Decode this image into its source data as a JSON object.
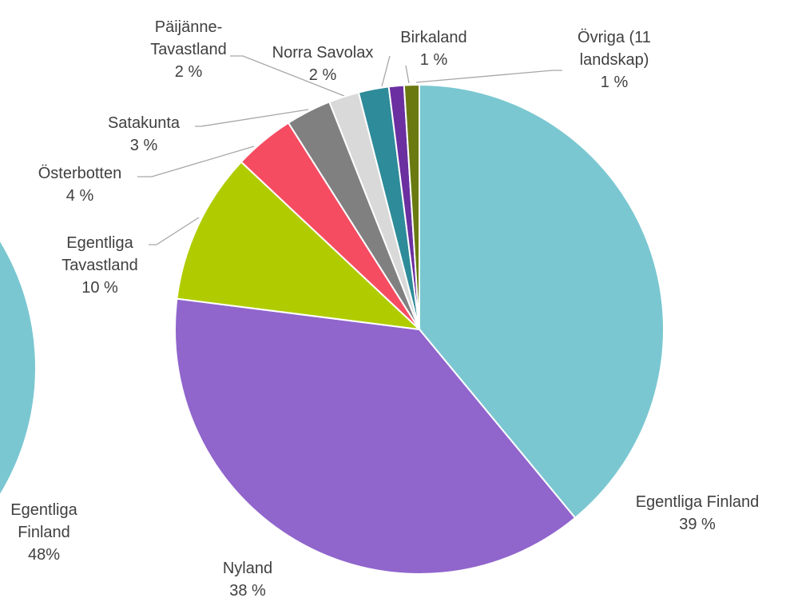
{
  "chart_data": [
    {
      "type": "pie",
      "categories": [
        "Egentliga Finland",
        "Nyland",
        "Egentliga Tavastland",
        "Österbotten",
        "Satakunta",
        "Päijänne-Tavastland",
        "Norra Savolax",
        "Birkaland",
        "Övriga (11 landskap)"
      ],
      "values": [
        39,
        38,
        10,
        4,
        3,
        2,
        2,
        1,
        1
      ],
      "value_labels": [
        "39 %",
        "38 %",
        "10 %",
        "4 %",
        "3 %",
        "2 %",
        "2 %",
        "1 %",
        "1 %"
      ],
      "colors": [
        "#7ac7d1",
        "#9065cc",
        "#b0cc00",
        "#f64c62",
        "#808080",
        "#d9d9d9",
        "#2e8b99",
        "#6b2fa0",
        "#6b7a10"
      ]
    },
    {
      "type": "pie",
      "categories": [
        "Egentliga Finland"
      ],
      "values": [
        48
      ],
      "value_labels": [
        "48%"
      ],
      "colors": [
        "#7ac7d1"
      ]
    }
  ]
}
